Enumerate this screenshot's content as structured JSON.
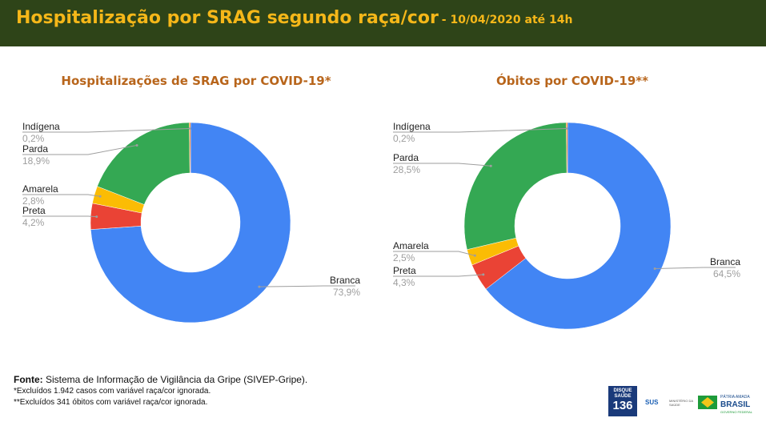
{
  "header": {
    "title": "Hospitalização por SRAG segundo raça/cor",
    "subtitle": "- 10/04/2020 até 14h"
  },
  "colors": {
    "header_bg": "#2e4418",
    "header_text": "#f5b719",
    "chart_title": "#b8651b",
    "branca": "#4285f4",
    "preta": "#ea4335",
    "amarela": "#fbbc04",
    "parda": "#34a853",
    "indigena": "#ff6d01"
  },
  "chart_data": [
    {
      "type": "pie",
      "title": "Hospitalizações de SRAG por COVID-19*",
      "donut": true,
      "categories": [
        "Branca",
        "Preta",
        "Amarela",
        "Parda",
        "Indígena"
      ],
      "values": [
        73.9,
        4.2,
        2.8,
        18.9,
        0.2
      ],
      "labels": [
        "73,9%",
        "4,2%",
        "2,8%",
        "18,9%",
        "0,2%"
      ]
    },
    {
      "type": "pie",
      "title": "Óbitos por COVID-19**",
      "donut": true,
      "categories": [
        "Branca",
        "Preta",
        "Amarela",
        "Parda",
        "Indígena"
      ],
      "values": [
        64.5,
        4.3,
        2.5,
        28.5,
        0.2
      ],
      "labels": [
        "64,5%",
        "4,3%",
        "2,5%",
        "28,5%",
        "0,2%"
      ]
    }
  ],
  "footer": {
    "source_label": "Fonte:",
    "source_text": "Sistema de Informação de Vigilância da Gripe (SIVEP-Gripe).",
    "note1": "*Excluídos 1.942 casos com variável raça/cor ignorada.",
    "note2": "**Excluídos 341 óbitos com variável raça/cor ignorada."
  },
  "logos": {
    "disque_top": "DISQUE SAÚDE",
    "disque_number": "136",
    "sus": "SUS",
    "ministry": "MINISTÉRIO DA SAÚDE",
    "brasil_top": "PÁTRIA AMADA",
    "brasil": "BRASIL",
    "brasil_bottom": "GOVERNO FEDERAL"
  }
}
